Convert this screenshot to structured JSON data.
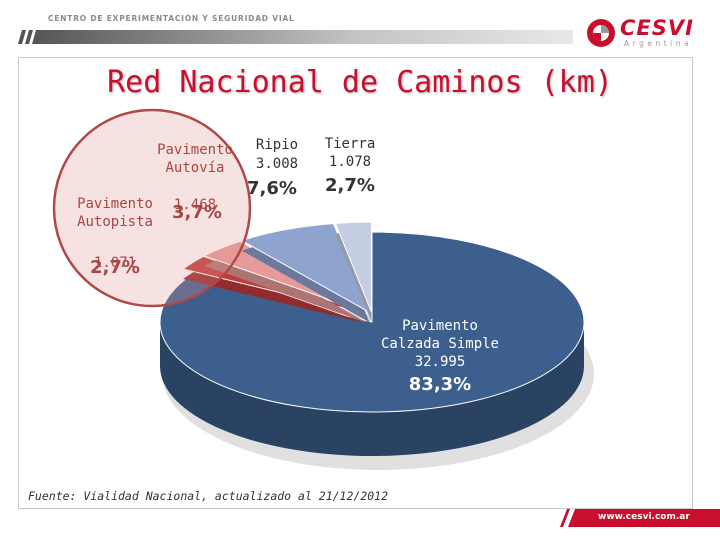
{
  "header": {
    "org_line": "CENTRO DE EXPERIMENTACIÓN Y SEGURIDAD VIAL",
    "logo_text": "CESVI",
    "logo_subtext": "Argentina"
  },
  "footer": {
    "url": "www.cesvi.com.ar"
  },
  "colors": {
    "brand_red": "#c8102e",
    "slice_main": "#3d5f8e",
    "slice_ripio": "#8fa3cf",
    "slice_tierra": "#c5cde3",
    "slice_autovia": "#e79a9a",
    "slice_autopista": "#c23b3b"
  },
  "chart_data": {
    "type": "pie",
    "title": "Red Nacional de Caminos (km)",
    "slices": [
      {
        "label_lines": [
          "Pavimento",
          "Calzada Simple"
        ],
        "value_text": "32.995",
        "percent_text": "83,3%",
        "value": 32995,
        "percent": 83.3,
        "color": "#3d5f8e"
      },
      {
        "label_lines": [
          "Pavimento",
          "Autopista"
        ],
        "value_text": "1.071",
        "percent_text": "2,7%",
        "value": 1071,
        "percent": 2.7,
        "color": "#c23b3b"
      },
      {
        "label_lines": [
          "Pavimento",
          "Autovía"
        ],
        "value_text": "1.468",
        "percent_text": "3,7%",
        "value": 1468,
        "percent": 3.7,
        "color": "#e79a9a"
      },
      {
        "label_lines": [
          "Ripio"
        ],
        "value_text": "3.008",
        "percent_text": "7,6%",
        "value": 3008,
        "percent": 7.6,
        "color": "#8fa3cf"
      },
      {
        "label_lines": [
          "Tierra"
        ],
        "value_text": "1.078",
        "percent_text": "2,7%",
        "value": 1078,
        "percent": 2.7,
        "color": "#c5cde3"
      }
    ],
    "source": "Fuente: Vialidad Nacional, actualizado al 21/12/2012"
  }
}
